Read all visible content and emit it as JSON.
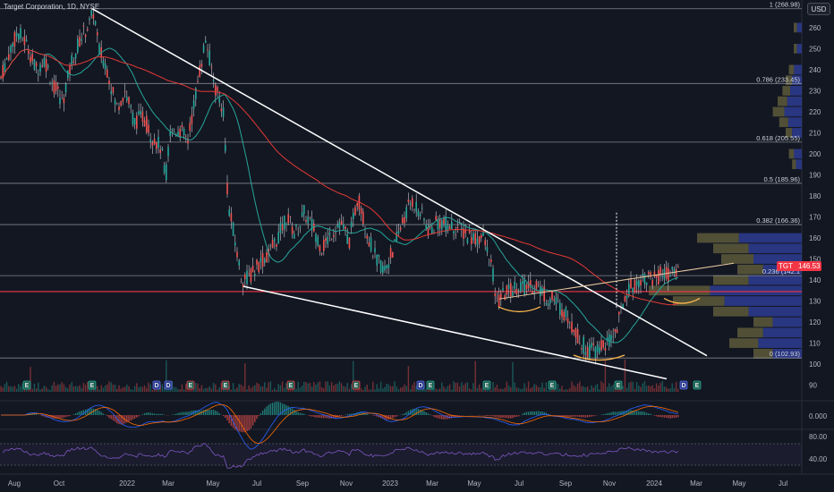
{
  "title": "Target Corporation, 1D, NYSE",
  "currency": "USD",
  "symbol": "TGT",
  "last_price": "146.53",
  "chart_data": {
    "type": "candlestick",
    "main_panel": {
      "y_ticks": [
        90,
        100,
        110,
        120,
        130,
        140,
        150,
        160,
        170,
        180,
        190,
        200,
        210,
        220,
        230,
        240,
        250,
        260
      ],
      "ylim": [
        86,
        271
      ],
      "last_price": 146.53,
      "fibonacci": [
        {
          "level": "1",
          "value": 268.98,
          "label": "1 (268.98)"
        },
        {
          "level": "0.786",
          "value": 233.45,
          "label": "0.786 (233.45)"
        },
        {
          "level": "0.618",
          "value": 205.55,
          "label": "0.618 (205.55)"
        },
        {
          "level": "0.5",
          "value": 185.96,
          "label": "0.5 (185.96)"
        },
        {
          "level": "0.382",
          "value": 166.36,
          "label": "0.382 (166.36)"
        },
        {
          "level": "0.236",
          "value": 142.1,
          "label": "0.236 (142.1"
        },
        {
          "level": "0",
          "value": 102.93,
          "label": "0 (102.93)"
        }
      ],
      "support_line": 134.5,
      "price_path": [
        [
          0,
          235
        ],
        [
          10,
          248
        ],
        [
          20,
          258
        ],
        [
          30,
          252
        ],
        [
          40,
          240
        ],
        [
          50,
          245
        ],
        [
          60,
          232
        ],
        [
          70,
          225
        ],
        [
          80,
          244
        ],
        [
          90,
          255
        ],
        [
          100,
          262
        ],
        [
          105,
          268
        ],
        [
          110,
          250
        ],
        [
          120,
          240
        ],
        [
          130,
          222
        ],
        [
          140,
          230
        ],
        [
          150,
          215
        ],
        [
          160,
          218
        ],
        [
          170,
          208
        ],
        [
          180,
          203
        ],
        [
          185,
          188
        ],
        [
          190,
          210
        ],
        [
          200,
          212
        ],
        [
          210,
          206
        ],
        [
          220,
          232
        ],
        [
          230,
          255
        ],
        [
          240,
          232
        ],
        [
          250,
          220
        ],
        [
          255,
          175
        ],
        [
          260,
          165
        ],
        [
          270,
          140
        ],
        [
          280,
          142
        ],
        [
          290,
          148
        ],
        [
          300,
          152
        ],
        [
          310,
          160
        ],
        [
          320,
          170
        ],
        [
          330,
          162
        ],
        [
          340,
          172
        ],
        [
          350,
          165
        ],
        [
          360,
          155
        ],
        [
          370,
          162
        ],
        [
          380,
          168
        ],
        [
          390,
          158
        ],
        [
          400,
          180
        ],
        [
          410,
          162
        ],
        [
          420,
          150
        ],
        [
          430,
          145
        ],
        [
          440,
          155
        ],
        [
          450,
          168
        ],
        [
          460,
          178
        ],
        [
          470,
          172
        ],
        [
          480,
          163
        ],
        [
          490,
          168
        ],
        [
          500,
          166
        ],
        [
          510,
          165
        ],
        [
          520,
          162
        ],
        [
          530,
          160
        ],
        [
          540,
          160
        ],
        [
          550,
          145
        ],
        [
          555,
          128
        ],
        [
          560,
          132
        ],
        [
          570,
          135
        ],
        [
          580,
          138
        ],
        [
          590,
          136
        ],
        [
          600,
          138
        ],
        [
          610,
          132
        ],
        [
          620,
          130
        ],
        [
          630,
          125
        ],
        [
          640,
          118
        ],
        [
          650,
          110
        ],
        [
          660,
          106
        ],
        [
          670,
          108
        ],
        [
          680,
          110
        ],
        [
          690,
          118
        ],
        [
          700,
          135
        ],
        [
          710,
          138
        ],
        [
          720,
          142
        ],
        [
          730,
          140
        ],
        [
          740,
          143
        ],
        [
          750,
          142
        ],
        [
          760,
          146.5
        ]
      ],
      "volume_profile": [
        {
          "price": 160,
          "value": 0.65
        },
        {
          "price": 155,
          "value": 0.55
        },
        {
          "price": 150,
          "value": 0.5
        },
        {
          "price": 145,
          "value": 0.4
        },
        {
          "price": 140,
          "value": 0.55
        },
        {
          "price": 135,
          "value": 0.95
        },
        {
          "price": 130,
          "value": 0.8
        },
        {
          "price": 125,
          "value": 0.55
        },
        {
          "price": 120,
          "value": 0.3
        },
        {
          "price": 115,
          "value": 0.4
        },
        {
          "price": 110,
          "value": 0.45
        },
        {
          "price": 105,
          "value": 0.3
        },
        {
          "price": 260,
          "value": 0.05
        },
        {
          "price": 250,
          "value": 0.05
        },
        {
          "price": 240,
          "value": 0.08
        },
        {
          "price": 235,
          "value": 0.1
        },
        {
          "price": 230,
          "value": 0.12
        },
        {
          "price": 225,
          "value": 0.15
        },
        {
          "price": 220,
          "value": 0.18
        },
        {
          "price": 215,
          "value": 0.14
        },
        {
          "price": 210,
          "value": 0.1
        },
        {
          "price": 200,
          "value": 0.08
        },
        {
          "price": 195,
          "value": 0.06
        }
      ]
    },
    "macd_panel": {
      "y_ticks": [
        "0.000"
      ]
    },
    "rsi_panel": {
      "y_ticks": [
        "80.00",
        "40.00"
      ]
    },
    "x_ticks": [
      {
        "label": "Aug",
        "x": 16
      },
      {
        "label": "Oct",
        "x": 66
      },
      {
        "label": "2022",
        "x": 142
      },
      {
        "label": "Mar",
        "x": 188
      },
      {
        "label": "May",
        "x": 238
      },
      {
        "label": "Jul",
        "x": 287
      },
      {
        "label": "Sep",
        "x": 338
      },
      {
        "label": "Nov",
        "x": 387
      },
      {
        "label": "2023",
        "x": 436
      },
      {
        "label": "Mar",
        "x": 483
      },
      {
        "label": "May",
        "x": 530
      },
      {
        "label": "Jul",
        "x": 580
      },
      {
        "label": "Sep",
        "x": 632
      },
      {
        "label": "Nov",
        "x": 681
      },
      {
        "label": "2024",
        "x": 731
      },
      {
        "label": "Mar",
        "x": 778
      },
      {
        "label": "May",
        "x": 826
      },
      {
        "label": "Jul",
        "x": 875
      }
    ],
    "events": [
      {
        "x": 30,
        "type": "E"
      },
      {
        "x": 103,
        "type": "E"
      },
      {
        "x": 175,
        "type": "D"
      },
      {
        "x": 188,
        "type": "D"
      },
      {
        "x": 213,
        "type": "E"
      },
      {
        "x": 252,
        "type": "E"
      },
      {
        "x": 325,
        "type": "E"
      },
      {
        "x": 398,
        "type": "E"
      },
      {
        "x": 470,
        "type": "D"
      },
      {
        "x": 481,
        "type": "E"
      },
      {
        "x": 544,
        "type": "E"
      },
      {
        "x": 617,
        "type": "E"
      },
      {
        "x": 691,
        "type": "E"
      },
      {
        "x": 764,
        "type": "D"
      },
      {
        "x": 779,
        "type": "E"
      }
    ]
  }
}
